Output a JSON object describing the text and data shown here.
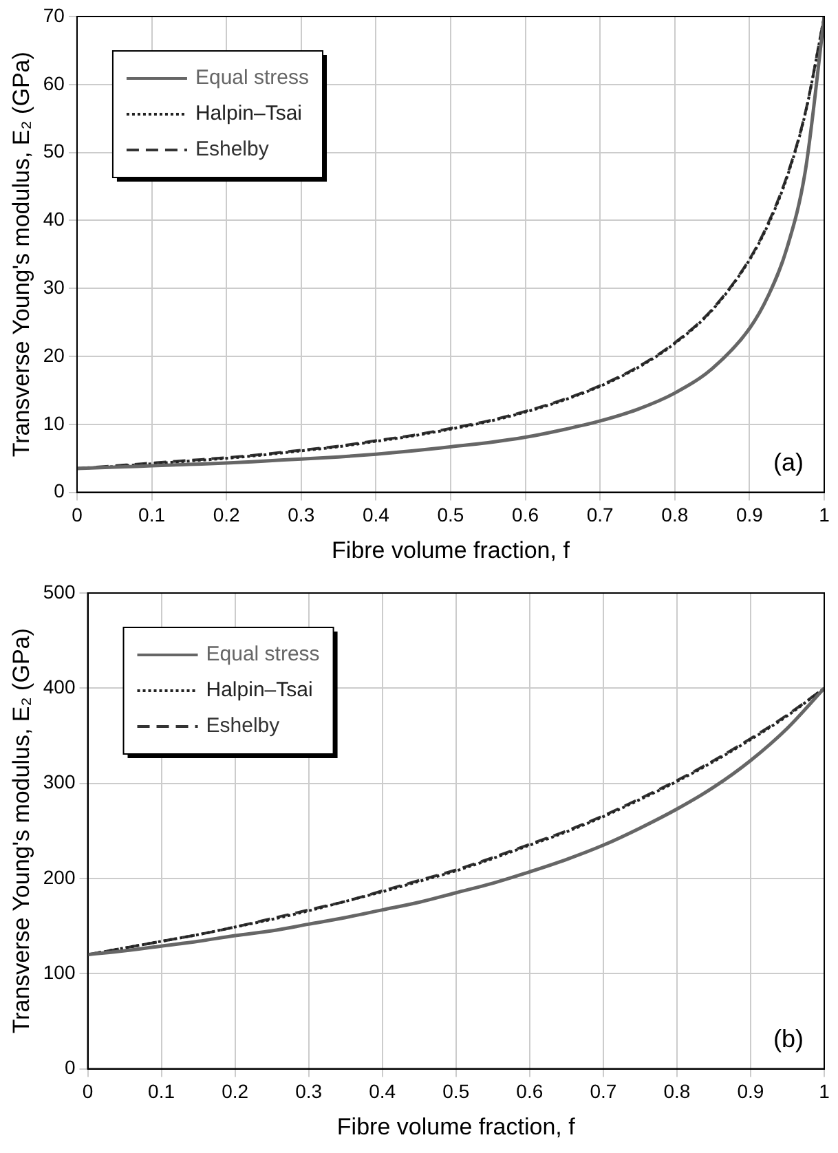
{
  "chart_data": [
    {
      "type": "line",
      "xlabel": "Fibre volume fraction, f",
      "ylabel": "Transverse Young's modulus, E₂ (GPa)",
      "x": [
        0,
        0.05,
        0.1,
        0.15,
        0.2,
        0.25,
        0.3,
        0.35,
        0.4,
        0.45,
        0.5,
        0.55,
        0.6,
        0.65,
        0.7,
        0.75,
        0.8,
        0.85,
        0.9,
        0.925,
        0.95,
        0.975,
        1
      ],
      "series": [
        {
          "name": "Equal stress",
          "color": "#666666",
          "line_style": "solid",
          "values": [
            3.5,
            3.7,
            3.9,
            4.1,
            4.3,
            4.6,
            4.9,
            5.2,
            5.6,
            6.1,
            6.7,
            7.3,
            8.1,
            9.2,
            10.5,
            12.2,
            14.6,
            18.2,
            24.1,
            28.9,
            35.9,
            47.5,
            70
          ]
        },
        {
          "name": "Halpin–Tsai",
          "color": "#222222",
          "line_style": "dotted",
          "values": [
            3.5,
            3.8,
            4.2,
            4.6,
            5.0,
            5.5,
            6.1,
            6.7,
            7.5,
            8.3,
            9.3,
            10.4,
            11.8,
            13.5,
            15.6,
            18.3,
            21.9,
            26.8,
            34.2,
            39.4,
            46.3,
            55.9,
            70
          ]
        },
        {
          "name": "Eshelby",
          "color": "#333333",
          "line_style": "dashed",
          "values": [
            3.5,
            3.9,
            4.3,
            4.7,
            5.1,
            5.6,
            6.2,
            6.8,
            7.6,
            8.4,
            9.4,
            10.5,
            11.9,
            13.6,
            15.7,
            18.4,
            22.0,
            26.9,
            34.3,
            39.6,
            46.5,
            56.0,
            70
          ]
        }
      ],
      "xlim": [
        0,
        1
      ],
      "xticks": [
        0,
        0.1,
        0.2,
        0.3,
        0.4,
        0.5,
        0.6,
        0.7,
        0.8,
        0.9,
        1
      ],
      "ylim": [
        0,
        70
      ],
      "yticks": [
        0,
        10,
        20,
        30,
        40,
        50,
        60,
        70
      ],
      "grid": true,
      "legend": "top left",
      "marker": "none",
      "annotations": [
        "(a)"
      ]
    },
    {
      "type": "line",
      "xlabel": "Fibre volume fraction, f",
      "ylabel": "Transverse Young's modulus, E₂ (GPa)",
      "x": [
        0,
        0.05,
        0.1,
        0.15,
        0.2,
        0.25,
        0.3,
        0.35,
        0.4,
        0.45,
        0.5,
        0.55,
        0.6,
        0.65,
        0.7,
        0.75,
        0.8,
        0.85,
        0.9,
        0.95,
        1
      ],
      "series": [
        {
          "name": "Equal stress",
          "color": "#666666",
          "line_style": "solid",
          "values": [
            120,
            124,
            129,
            134,
            140,
            145,
            152,
            159,
            167,
            175,
            185,
            195,
            207,
            220,
            235,
            253,
            273,
            296,
            324,
            358,
            400
          ]
        },
        {
          "name": "Halpin–Tsai",
          "color": "#222222",
          "line_style": "dotted",
          "values": [
            120,
            127,
            134,
            141,
            149,
            157,
            166,
            176,
            186,
            197,
            208,
            221,
            235,
            249,
            265,
            283,
            302,
            323,
            346,
            371,
            400
          ]
        },
        {
          "name": "Eshelby",
          "color": "#333333",
          "line_style": "dashed",
          "values": [
            120,
            127,
            134,
            141,
            149,
            158,
            167,
            176,
            187,
            198,
            209,
            222,
            236,
            250,
            266,
            284,
            303,
            324,
            347,
            372,
            400
          ]
        }
      ],
      "xlim": [
        0,
        1
      ],
      "xticks": [
        0,
        0.1,
        0.2,
        0.3,
        0.4,
        0.5,
        0.6,
        0.7,
        0.8,
        0.9,
        1
      ],
      "ylim": [
        0,
        500
      ],
      "yticks": [
        0,
        100,
        200,
        300,
        400,
        500
      ],
      "grid": true,
      "legend": "top left",
      "marker": "none",
      "annotations": [
        "(b)"
      ]
    }
  ]
}
